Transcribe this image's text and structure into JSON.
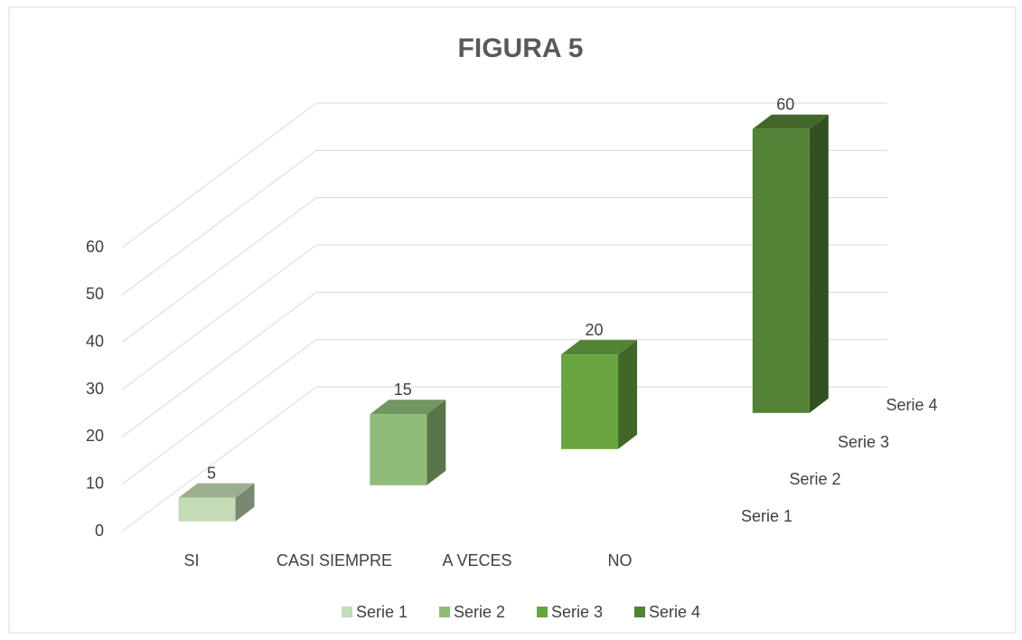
{
  "chart_data": {
    "type": "bar3d",
    "title": "FIGURA 5",
    "categories": [
      "SI",
      "CASI SIEMPRE",
      "A VECES",
      "NO"
    ],
    "series": [
      {
        "name": "Serie 1",
        "color": "#c3dcb5",
        "values": [
          5,
          null,
          null,
          null
        ]
      },
      {
        "name": "Serie 2",
        "color": "#8fbc78",
        "values": [
          null,
          15,
          null,
          null
        ]
      },
      {
        "name": "Serie 3",
        "color": "#67a540",
        "values": [
          null,
          null,
          20,
          null
        ]
      },
      {
        "name": "Serie 4",
        "color": "#538135",
        "values": [
          null,
          null,
          null,
          60
        ]
      }
    ],
    "ylim": [
      0,
      60
    ],
    "yticks": [
      0,
      10,
      20,
      30,
      40,
      50,
      60
    ],
    "grid": true,
    "legend": "bottom"
  }
}
